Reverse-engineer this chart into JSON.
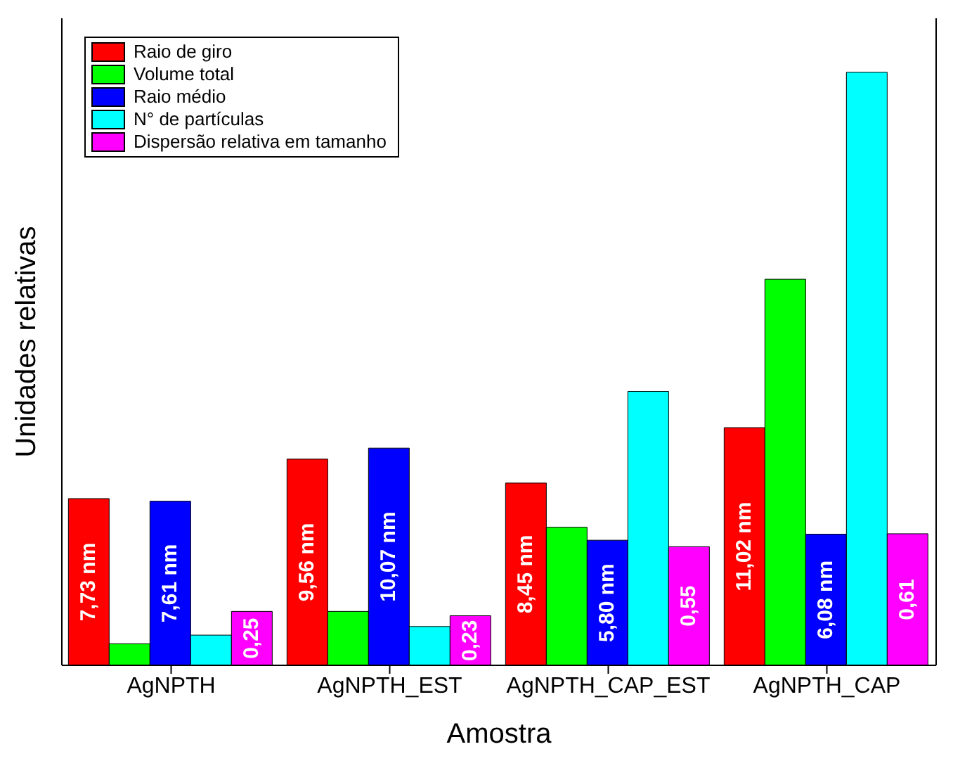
{
  "chart_data": {
    "type": "bar",
    "xlabel": "Amostra",
    "ylabel": "Unidades relativas",
    "legend": "top left",
    "tick_labels": "x",
    "ylim": [
      0,
      30
    ],
    "y2lim": [
      0,
      3
    ],
    "categories": [
      "AgNPTH",
      "AgNPTH_EST",
      "AgNPTH_CAP_EST",
      "AgNPTH_CAP"
    ],
    "series": [
      {
        "name": "Raio de giro",
        "color": "#ff0000",
        "values": [
          7.73,
          9.56,
          8.45,
          11.02
        ],
        "value_labels": [
          "7,73 nm",
          "9,56 nm",
          "8,45 nm",
          "11,02 nm"
        ]
      },
      {
        "name": "Volume total",
        "color": "#00ff00",
        "values": [
          1.0,
          2.5,
          6.4,
          17.9
        ]
      },
      {
        "name": "Raio médio",
        "color": "#0000ff",
        "values": [
          7.61,
          10.07,
          5.8,
          6.08
        ],
        "value_labels": [
          "7,61 nm",
          "10,07 nm",
          "5,80 nm",
          "6,08 nm"
        ]
      },
      {
        "name": "N° de partículas",
        "color": "#00ffff",
        "values": [
          1.4,
          1.8,
          12.7,
          27.5
        ]
      },
      {
        "name": "Dispersão relativa em tamanho",
        "color": "#ff00ff",
        "axis": "y2",
        "values": [
          0.25,
          0.23,
          0.55,
          0.61
        ],
        "value_labels": [
          "0,25",
          "0,23",
          "0,55",
          "0,61"
        ]
      }
    ]
  }
}
